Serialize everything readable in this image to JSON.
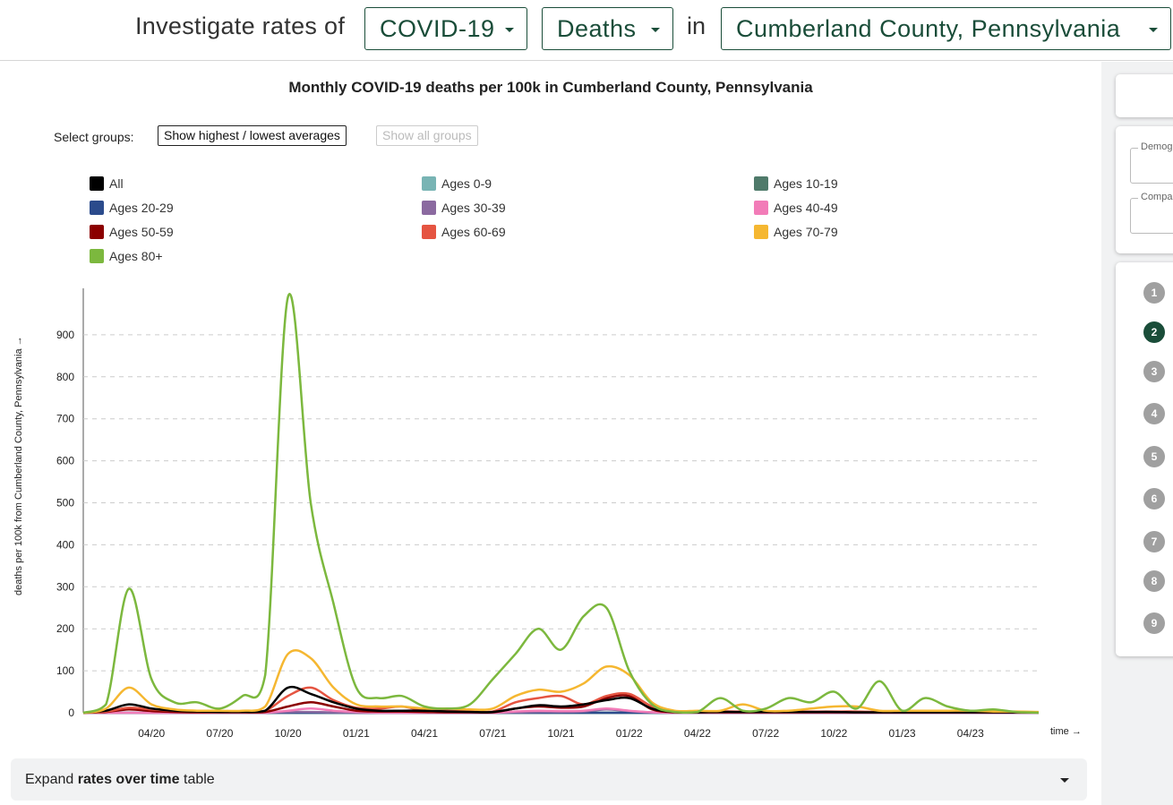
{
  "header": {
    "intro": "Investigate rates of",
    "condition": "COVID-19",
    "measure": "Deaths",
    "connector": "in",
    "location": "Cumberland County, Pennsylvania"
  },
  "controls": {
    "select_label": "Select groups:",
    "highest_lowest": "Show highest / lowest averages",
    "show_all": "Show all groups"
  },
  "expand": {
    "prefix": "Expand ",
    "bold": "rates over time",
    "suffix": " table"
  },
  "side_panel": {
    "field1_label": "Demog",
    "field2_label": "Compa",
    "steps": [
      "1",
      "2",
      "3",
      "4",
      "5",
      "6",
      "7",
      "8",
      "9"
    ],
    "active_step": "2"
  },
  "chart_data": {
    "type": "line",
    "title": "Monthly COVID-19 deaths per 100k in Cumberland County, Pennsylvania",
    "ylabel": "deaths per 100k from Cumberland County, Pennsylvania →",
    "xlabel": "time →",
    "ylim": [
      0,
      1000
    ],
    "yticks": [
      0,
      100,
      200,
      300,
      400,
      500,
      600,
      700,
      800,
      900
    ],
    "grid": true,
    "legend_position": "top",
    "x": [
      "2020-01",
      "2020-02",
      "2020-03",
      "2020-04",
      "2020-05",
      "2020-06",
      "2020-07",
      "2020-08",
      "2020-09",
      "2020-10",
      "2020-11",
      "2020-12",
      "2021-01",
      "2021-02",
      "2021-03",
      "2021-04",
      "2021-05",
      "2021-06",
      "2021-07",
      "2021-08",
      "2021-09",
      "2021-10",
      "2021-11",
      "2021-12",
      "2022-01",
      "2022-02",
      "2022-03",
      "2022-04",
      "2022-05",
      "2022-06",
      "2022-07",
      "2022-08",
      "2022-09",
      "2022-10",
      "2022-11",
      "2022-12",
      "2023-01",
      "2023-02",
      "2023-03",
      "2023-04",
      "2023-05",
      "2023-06",
      "2023-07"
    ],
    "xtick_labels": [
      {
        "x": "2020-04",
        "label": "04/20"
      },
      {
        "x": "2020-07",
        "label": "07/20"
      },
      {
        "x": "2020-10",
        "label": "10/20"
      },
      {
        "x": "2021-01",
        "label": "01/21"
      },
      {
        "x": "2021-04",
        "label": "04/21"
      },
      {
        "x": "2021-07",
        "label": "07/21"
      },
      {
        "x": "2021-10",
        "label": "10/21"
      },
      {
        "x": "2022-01",
        "label": "01/22"
      },
      {
        "x": "2022-04",
        "label": "04/22"
      },
      {
        "x": "2022-07",
        "label": "07/22"
      },
      {
        "x": "2022-10",
        "label": "10/22"
      },
      {
        "x": "2023-01",
        "label": "01/23"
      },
      {
        "x": "2023-04",
        "label": "04/23"
      }
    ],
    "series": [
      {
        "name": "All",
        "color": "#000000",
        "values": [
          0,
          5,
          20,
          10,
          5,
          3,
          2,
          2,
          5,
          60,
          45,
          25,
          10,
          5,
          5,
          5,
          3,
          2,
          2,
          10,
          18,
          15,
          20,
          30,
          35,
          10,
          2,
          1,
          2,
          2,
          2,
          2,
          2,
          2,
          1,
          1,
          1,
          1,
          1,
          1,
          1,
          1,
          1
        ]
      },
      {
        "name": "Ages 0-9",
        "color": "#78b4b4",
        "values": [
          0,
          0,
          0,
          0,
          0,
          0,
          0,
          0,
          0,
          0,
          0,
          0,
          0,
          0,
          0,
          0,
          0,
          0,
          0,
          0,
          0,
          0,
          0,
          0,
          0,
          0,
          0,
          0,
          0,
          0,
          0,
          0,
          0,
          0,
          0,
          0,
          0,
          0,
          0,
          0,
          0,
          0,
          0
        ]
      },
      {
        "name": "Ages 10-19",
        "color": "#4f7a6a",
        "values": [
          0,
          0,
          0,
          0,
          0,
          0,
          0,
          0,
          0,
          0,
          0,
          0,
          0,
          0,
          0,
          0,
          0,
          0,
          0,
          0,
          0,
          0,
          0,
          0,
          0,
          0,
          0,
          0,
          0,
          0,
          0,
          0,
          0,
          0,
          0,
          0,
          0,
          0,
          0,
          0,
          0,
          0,
          0
        ]
      },
      {
        "name": "Ages 20-29",
        "color": "#2b4b8c",
        "values": [
          0,
          0,
          0,
          0,
          0,
          0,
          0,
          0,
          0,
          0,
          0,
          0,
          0,
          0,
          0,
          0,
          0,
          0,
          0,
          0,
          0,
          0,
          0,
          0,
          0,
          0,
          0,
          0,
          0,
          0,
          0,
          0,
          0,
          0,
          0,
          0,
          0,
          0,
          0,
          0,
          0,
          0,
          0
        ]
      },
      {
        "name": "Ages 30-39",
        "color": "#8b6aa0",
        "values": [
          0,
          0,
          0,
          0,
          0,
          0,
          0,
          0,
          0,
          2,
          2,
          1,
          0,
          0,
          0,
          0,
          0,
          0,
          0,
          1,
          2,
          2,
          3,
          8,
          4,
          1,
          0,
          0,
          0,
          0,
          0,
          0,
          0,
          0,
          0,
          0,
          0,
          0,
          0,
          0,
          0,
          0,
          0
        ]
      },
      {
        "name": "Ages 40-49",
        "color": "#f27cb8",
        "values": [
          0,
          0,
          0,
          0,
          0,
          0,
          0,
          0,
          0,
          5,
          10,
          5,
          2,
          0,
          0,
          0,
          0,
          0,
          0,
          3,
          5,
          4,
          5,
          10,
          5,
          1,
          0,
          0,
          0,
          0,
          0,
          0,
          0,
          0,
          0,
          0,
          0,
          0,
          0,
          0,
          0,
          0,
          0
        ]
      },
      {
        "name": "Ages 50-59",
        "color": "#8b0000",
        "values": [
          0,
          2,
          8,
          4,
          2,
          1,
          1,
          1,
          2,
          15,
          25,
          15,
          5,
          3,
          3,
          2,
          1,
          1,
          1,
          10,
          15,
          12,
          15,
          35,
          40,
          8,
          1,
          1,
          1,
          1,
          1,
          1,
          1,
          1,
          1,
          1,
          1,
          1,
          1,
          1,
          1,
          1,
          1
        ]
      },
      {
        "name": "Ages 60-69",
        "color": "#e55441",
        "values": [
          0,
          3,
          12,
          8,
          5,
          3,
          2,
          2,
          5,
          40,
          60,
          30,
          12,
          10,
          15,
          5,
          5,
          3,
          3,
          25,
          35,
          40,
          20,
          40,
          45,
          15,
          3,
          2,
          3,
          3,
          3,
          3,
          3,
          3,
          3,
          2,
          2,
          2,
          2,
          2,
          2,
          1,
          1
        ]
      },
      {
        "name": "Ages 70-79",
        "color": "#f5b731",
        "values": [
          0,
          10,
          60,
          20,
          8,
          5,
          5,
          5,
          15,
          140,
          130,
          60,
          20,
          15,
          15,
          10,
          10,
          8,
          10,
          40,
          55,
          50,
          70,
          110,
          90,
          25,
          5,
          5,
          5,
          20,
          5,
          5,
          10,
          15,
          15,
          5,
          5,
          5,
          5,
          5,
          3,
          3,
          2
        ]
      },
      {
        "name": "Ages 80+",
        "color": "#7cb83e",
        "values": [
          0,
          20,
          295,
          80,
          25,
          25,
          10,
          40,
          90,
          990,
          500,
          260,
          60,
          35,
          40,
          15,
          10,
          20,
          80,
          140,
          200,
          150,
          230,
          250,
          100,
          20,
          2,
          2,
          35,
          5,
          10,
          35,
          25,
          50,
          10,
          75,
          5,
          35,
          15,
          5,
          8,
          2,
          0
        ]
      }
    ]
  }
}
